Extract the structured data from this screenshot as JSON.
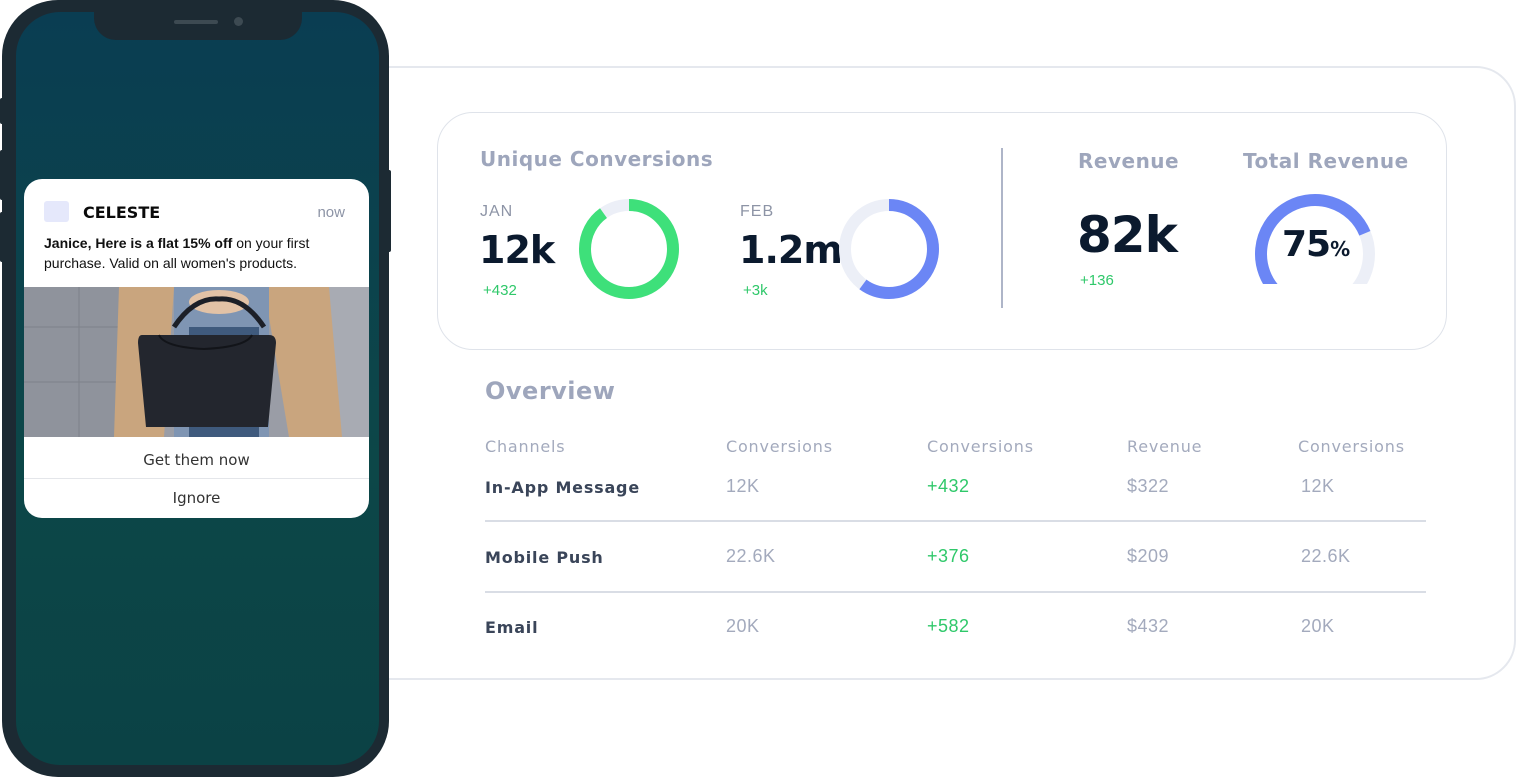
{
  "stats": {
    "unique_conversions_title": "Unique Conversions",
    "jan": {
      "label": "JAN",
      "value": "12k",
      "delta": "+432",
      "ring_fraction": 0.9,
      "ring_color": "#3ee07a"
    },
    "feb": {
      "label": "FEB",
      "value": "1.2m",
      "delta": "+3k",
      "ring_fraction": 0.6,
      "ring_color": "#6b86f5"
    },
    "revenue_title": "Revenue",
    "revenue_value": "82k",
    "revenue_delta": "+136",
    "total_revenue_title": "Total Revenue",
    "total_revenue_value": "75",
    "total_revenue_unit": "%",
    "total_revenue_fraction": 0.75,
    "gauge_color": "#6b86f5",
    "track_color": "#eceff7"
  },
  "overview": {
    "title": "Overview",
    "headers": [
      "Channels",
      "Conversions",
      "Conversions",
      "Revenue",
      "Conversions"
    ],
    "rows": [
      {
        "channel": "In-App Message",
        "conversions": "12K",
        "change": "+432",
        "revenue": "$322",
        "conversions2": "12K"
      },
      {
        "channel": "Mobile Push",
        "conversions": "22.6K",
        "change": "+376",
        "revenue": "$209",
        "conversions2": "22.6K"
      },
      {
        "channel": "Email",
        "conversions": "20K",
        "change": "+582",
        "revenue": "$432",
        "conversions2": "20K"
      }
    ]
  },
  "notification": {
    "app_name": "CELESTE",
    "time": "now",
    "message_bold": "Janice, Here is a flat 15% off",
    "message_rest": " on your first purchase. Valid on all women's products.",
    "primary_action": "Get them now",
    "secondary_action": "Ignore"
  }
}
